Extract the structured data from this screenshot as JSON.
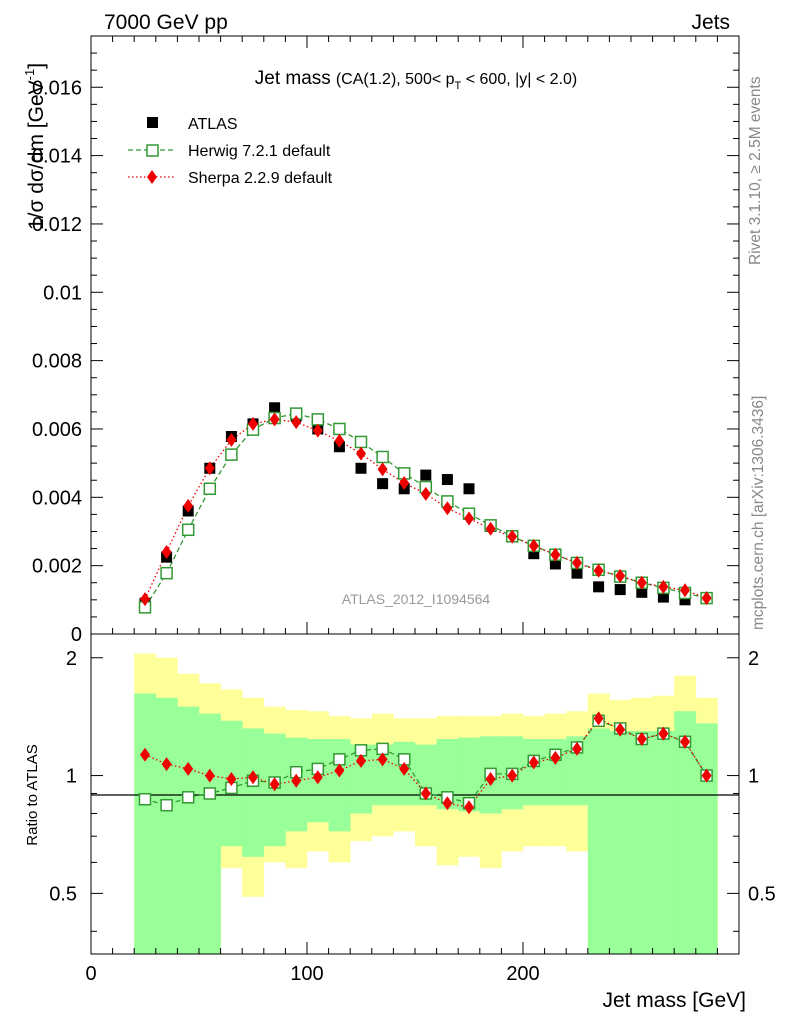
{
  "header": {
    "left": "7000 GeV pp",
    "right": "Jets"
  },
  "side_labels": {
    "rivet": "Rivet 3.1.10, ≥ 2.5M events",
    "mcplots": "mcplots.cern.ch [arXiv:1306.3436]"
  },
  "plot_title": {
    "main": "Jet mass",
    "sub_prefix": "(CA(1.2), 500< p",
    "sub_sub": "T",
    "sub_suffix": " < 600, |y| < 2.0)"
  },
  "watermark": "ATLAS_2012_I1094564",
  "colors": {
    "herwig": "#339933",
    "sherpa": "#ee0000",
    "atlas": "#000000",
    "band_inner": "#99ff99",
    "band_outer": "#ffff99"
  },
  "chart_data": [
    {
      "type": "scatter",
      "title": "Jet mass (CA(1.2), 500< pT < 600, |y| < 2.0)",
      "ylabel": "1/σ dσ/dm [GeV⁻¹]",
      "ylabel_parts": {
        "main": "1/σ dσ/dm [GeV",
        "sup": "-1",
        "close": "]"
      },
      "xlim": [
        0,
        300
      ],
      "ylim": [
        0,
        0.0175
      ],
      "yticks": [
        0,
        0.002,
        0.004,
        0.006,
        0.008,
        0.01,
        0.012,
        0.014,
        0.016
      ],
      "ytick_labels": [
        "0",
        "0.002",
        "0.004",
        "0.006",
        "0.008",
        "0.01",
        "0.012",
        "0.014",
        "0.016"
      ],
      "x": [
        25,
        35,
        45,
        55,
        65,
        75,
        85,
        95,
        105,
        115,
        125,
        135,
        145,
        155,
        165,
        175,
        185,
        195,
        205,
        215,
        225,
        235,
        245,
        255,
        265,
        275,
        285
      ],
      "series": [
        {
          "name": "ATLAS",
          "style": "square-filled",
          "values": [
            0.0009,
            0.00225,
            0.0036,
            0.00485,
            0.00578,
            0.00615,
            0.00662,
            0.00638,
            0.006,
            0.00548,
            0.00485,
            0.0044,
            0.00425,
            0.00465,
            0.00452,
            0.00425,
            0.00315,
            0.00285,
            0.00235,
            0.00205,
            0.00178,
            0.00138,
            0.0013,
            0.00122,
            0.00108,
            0.001,
            0.00105
          ]
        },
        {
          "name": "Herwig 7.2.1 default",
          "style": "square-open-dashed",
          "values": [
            0.00078,
            0.00178,
            0.00305,
            0.00425,
            0.00525,
            0.00598,
            0.00632,
            0.00645,
            0.00628,
            0.006,
            0.00562,
            0.00518,
            0.0047,
            0.0043,
            0.00388,
            0.00352,
            0.00318,
            0.00286,
            0.00258,
            0.00232,
            0.00208,
            0.00188,
            0.00168,
            0.0015,
            0.00135,
            0.0012,
            0.00105
          ]
        },
        {
          "name": "Sherpa 2.2.9 default",
          "style": "diamond-filled-dotted",
          "values": [
            0.00102,
            0.0024,
            0.00375,
            0.00485,
            0.00568,
            0.00615,
            0.00628,
            0.0062,
            0.00595,
            0.00565,
            0.00528,
            0.00482,
            0.00442,
            0.0041,
            0.00368,
            0.00338,
            0.00308,
            0.00285,
            0.00258,
            0.00232,
            0.00208,
            0.00185,
            0.0017,
            0.0015,
            0.00138,
            0.00128,
            0.00105
          ]
        }
      ]
    },
    {
      "type": "scatter",
      "title": "Ratio to ATLAS",
      "xlabel": "Jet mass [GeV]",
      "ylabel": "Ratio to ATLAS",
      "xlim": [
        0,
        300
      ],
      "ylim": [
        0.35,
        2.3
      ],
      "xticks": [
        0,
        100,
        200
      ],
      "xtick_labels": [
        "0",
        "100",
        "200"
      ],
      "yticks": [
        0.5,
        1,
        2
      ],
      "ytick_labels": [
        "0.5",
        "1",
        "2"
      ],
      "x_edges": [
        20,
        30,
        40,
        50,
        60,
        70,
        80,
        90,
        100,
        110,
        120,
        130,
        140,
        150,
        160,
        170,
        180,
        190,
        200,
        210,
        220,
        230,
        240,
        250,
        260,
        270,
        280,
        290
      ],
      "band_inner": {
        "lo": [
          0.35,
          0.35,
          0.35,
          0.35,
          0.66,
          0.62,
          0.66,
          0.72,
          0.76,
          0.72,
          0.8,
          0.84,
          0.84,
          0.84,
          0.82,
          0.81,
          0.8,
          0.82,
          0.84,
          0.84,
          0.84,
          0.35,
          0.35,
          0.35,
          0.35,
          0.35,
          0.35
        ],
        "hi": [
          1.62,
          1.58,
          1.5,
          1.44,
          1.38,
          1.32,
          1.28,
          1.25,
          1.24,
          1.24,
          1.2,
          1.2,
          1.22,
          1.2,
          1.24,
          1.25,
          1.26,
          1.26,
          1.24,
          1.24,
          1.26,
          1.32,
          1.3,
          1.3,
          1.3,
          1.46,
          1.36
        ]
      },
      "band_outer": {
        "lo": [
          0.35,
          0.35,
          0.52,
          0.44,
          0.58,
          0.49,
          0.6,
          0.58,
          0.64,
          0.6,
          0.68,
          0.7,
          0.72,
          0.66,
          0.59,
          0.62,
          0.58,
          0.64,
          0.66,
          0.66,
          0.64,
          0.35,
          0.58,
          0.5,
          0.42,
          0.66,
          0.35
        ],
        "hi": [
          2.05,
          2.0,
          1.82,
          1.72,
          1.66,
          1.58,
          1.5,
          1.47,
          1.46,
          1.42,
          1.4,
          1.44,
          1.4,
          1.4,
          1.42,
          1.42,
          1.42,
          1.44,
          1.42,
          1.44,
          1.46,
          1.62,
          1.56,
          1.58,
          1.6,
          1.8,
          1.58
        ]
      },
      "series": [
        {
          "name": "Herwig 7.2.1 default",
          "style": "square-open-dashed",
          "values": [
            0.87,
            0.84,
            0.88,
            0.9,
            0.93,
            0.97,
            0.96,
            1.02,
            1.04,
            1.1,
            1.16,
            1.17,
            1.1,
            0.9,
            0.88,
            0.85,
            1.01,
            1.01,
            1.09,
            1.13,
            1.18,
            1.38,
            1.32,
            1.24,
            1.28,
            1.22,
            1.0
          ]
        },
        {
          "name": "Sherpa 2.2.9 default",
          "style": "diamond-filled-dotted",
          "values": [
            1.13,
            1.07,
            1.04,
            1.0,
            0.98,
            0.99,
            0.95,
            0.97,
            0.99,
            1.03,
            1.09,
            1.1,
            1.04,
            0.9,
            0.85,
            0.83,
            0.98,
            1.0,
            1.08,
            1.11,
            1.17,
            1.4,
            1.31,
            1.24,
            1.28,
            1.22,
            1.0
          ]
        }
      ]
    }
  ]
}
